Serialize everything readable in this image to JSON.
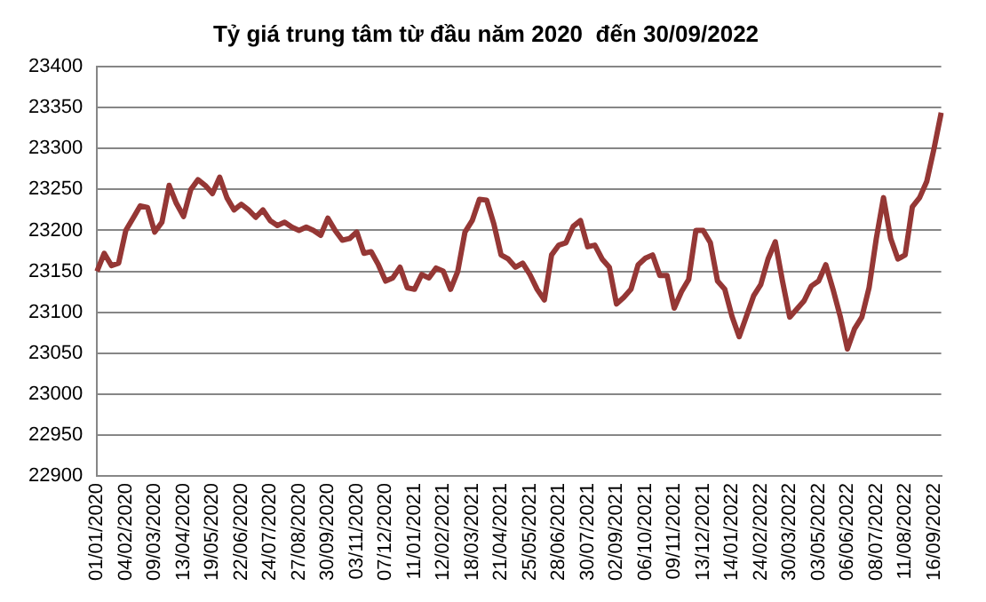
{
  "chart_data": {
    "type": "line",
    "title": "Tỷ giá trung tâm từ đầu năm 2020  đến 30/09/2022",
    "categories": [
      "01/01/2020",
      null,
      null,
      null,
      "04/02/2020",
      null,
      null,
      null,
      "09/03/2020",
      null,
      null,
      null,
      "13/04/2020",
      null,
      null,
      null,
      "19/05/2020",
      null,
      null,
      null,
      "22/06/2020",
      null,
      null,
      null,
      "24/07/2020",
      null,
      null,
      null,
      "27/08/2020",
      null,
      null,
      null,
      "30/09/2020",
      null,
      null,
      null,
      "03/11/2020",
      null,
      null,
      null,
      "07/12/2020",
      null,
      null,
      null,
      "11/01/2021",
      null,
      null,
      null,
      "12/02/2021",
      null,
      null,
      null,
      "18/03/2021",
      null,
      null,
      null,
      "21/04/2021",
      null,
      null,
      null,
      "25/05/2021",
      null,
      null,
      null,
      "28/06/2021",
      null,
      null,
      null,
      "30/07/2021",
      null,
      null,
      null,
      "02/09/2021",
      null,
      null,
      null,
      "06/10/2021",
      null,
      null,
      null,
      "09/11/2021",
      null,
      null,
      null,
      "13/12/2021",
      null,
      null,
      null,
      "14/01/2022",
      null,
      null,
      null,
      "24/02/2022",
      null,
      null,
      null,
      "30/03/2022",
      null,
      null,
      null,
      "03/05/2022",
      null,
      null,
      null,
      "06/06/2022",
      null,
      null,
      null,
      "08/07/2022",
      null,
      null,
      null,
      "11/08/2022",
      null,
      null,
      null,
      "16/09/2022",
      null
    ],
    "series": [
      {
        "color": "#953735",
        "values": [
          23150,
          23172,
          23157,
          23160,
          23200,
          23215,
          23230,
          23228,
          23198,
          23210,
          23255,
          23233,
          23217,
          23250,
          23262,
          23255,
          23245,
          23265,
          23240,
          23225,
          23232,
          23225,
          23216,
          23225,
          23212,
          23206,
          23210,
          23204,
          23200,
          23204,
          23200,
          23194,
          23215,
          23200,
          23188,
          23190,
          23198,
          23172,
          23174,
          23158,
          23138,
          23142,
          23155,
          23130,
          23128,
          23146,
          23142,
          23154,
          23150,
          23128,
          23150,
          23198,
          23212,
          23238,
          23237,
          23208,
          23170,
          23165,
          23155,
          23160,
          23146,
          23128,
          23115,
          23170,
          23182,
          23185,
          23205,
          23212,
          23180,
          23182,
          23165,
          23155,
          23110,
          23118,
          23128,
          23158,
          23166,
          23170,
          23145,
          23145,
          23105,
          23125,
          23140,
          23200,
          23200,
          23185,
          23138,
          23128,
          23095,
          23070,
          23095,
          23120,
          23134,
          23165,
          23186,
          23138,
          23094,
          23104,
          23114,
          23132,
          23138,
          23158,
          23128,
          23095,
          23055,
          23080,
          23094,
          23130,
          23190,
          23240,
          23190,
          23165,
          23170,
          23229,
          23240,
          23260,
          23300,
          23344
        ]
      }
    ],
    "ylim": [
      22900,
      23400
    ],
    "yticks": [
      22900,
      22950,
      23000,
      23050,
      23100,
      23150,
      23200,
      23250,
      23300,
      23350,
      23400
    ],
    "grid": "y",
    "legend": false,
    "marker": "none",
    "line_style": "solid"
  }
}
